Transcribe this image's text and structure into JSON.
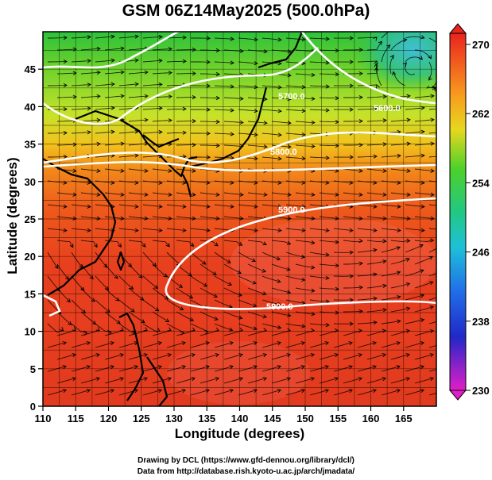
{
  "title": "GSM 06Z14May2025 (500.0hPa)",
  "map": {
    "xlabel": "Longitude (degrees)",
    "ylabel": "Latitude  (degrees)",
    "xticks": [
      "110",
      "115",
      "120",
      "125",
      "130",
      "135",
      "140",
      "145",
      "150",
      "155",
      "160",
      "165"
    ],
    "yticks": [
      "0",
      "5",
      "10",
      "15",
      "20",
      "25",
      "30",
      "35",
      "40",
      "45"
    ],
    "lon_range": [
      110,
      170
    ],
    "lat_range": [
      0,
      50
    ]
  },
  "colorbar": {
    "ticks": [
      "230",
      "238",
      "246",
      "254",
      "262",
      "270"
    ],
    "min": 230,
    "max": 270
  },
  "contour_labels": [
    "5600.0",
    "5700.0",
    "5800.0",
    "5900.0",
    "5900.0"
  ],
  "credits": {
    "line1": "Drawing by DCL (https://www.gfd-dennou.org/library/dcl/)",
    "line2": "Data from http://database.rish.kyoto-u.ac.jp/arch/jmadata/"
  }
}
